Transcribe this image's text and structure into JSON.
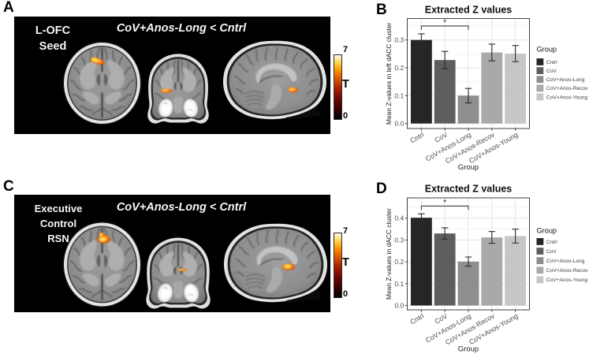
{
  "figure": {
    "panel_a": {
      "letter": "A",
      "seed_label": "L-OFC\nSeed",
      "contrast_title": "CoV+Anos-Long < Cntrl",
      "colorbar": {
        "top_label": "7",
        "mid_label": "T",
        "bottom_label": "0"
      }
    },
    "panel_c": {
      "letter": "C",
      "seed_label": "Executive\nControl\nRSN",
      "contrast_title": "CoV+Anos-Long < Cntrl",
      "colorbar": {
        "top_label": "7",
        "mid_label": "T",
        "bottom_label": "0"
      }
    },
    "panel_b": {
      "letter": "B"
    },
    "panel_d": {
      "letter": "D"
    }
  },
  "chart_data": [
    {
      "panel": "B",
      "type": "bar",
      "title": "Extracted Z values",
      "xlabel": "Group",
      "ylabel": "Mean Z-values in left dACC cluster",
      "categories": [
        "Cntrl",
        "CoV",
        "CoV+Anos-Long",
        "CoV+Anos-Recov",
        "CoV+Anos-Young"
      ],
      "values": [
        0.3,
        0.228,
        0.1,
        0.255,
        0.251
      ],
      "errors": [
        0.022,
        0.031,
        0.026,
        0.03,
        0.029
      ],
      "ylim": [
        -0.018,
        0.377
      ],
      "yticks": [
        0.0,
        0.1,
        0.2,
        0.3
      ],
      "ytick_labels": [
        "0.0",
        "0.1",
        "0.2",
        "0.3"
      ],
      "bar_colors": [
        "#262626",
        "#5e5e5e",
        "#8e8e8e",
        "#a9a9a9",
        "#c6c6c6"
      ],
      "legend_title": "Group",
      "legend_labels": [
        "Cntrl",
        "CoV",
        "CoV+Anos-Long",
        "CoV+Anos-Recov",
        "CoV+Anos-Young"
      ],
      "significance": {
        "from": 0,
        "to": 2,
        "label": "*"
      },
      "grid": true,
      "legend_position": "right"
    },
    {
      "panel": "D",
      "type": "bar",
      "title": "Extracted Z values",
      "xlabel": "Group",
      "ylabel": "Mean Z-values in dACC cluster",
      "categories": [
        "Cntrl",
        "CoV",
        "CoV+Anos-Long",
        "CoV+Anos-Recov",
        "CoV+Anos-Young"
      ],
      "values": [
        0.402,
        0.33,
        0.201,
        0.312,
        0.318
      ],
      "errors": [
        0.018,
        0.026,
        0.021,
        0.027,
        0.032
      ],
      "ylim": [
        -0.02,
        0.493
      ],
      "yticks": [
        0.0,
        0.1,
        0.2,
        0.3,
        0.4
      ],
      "ytick_labels": [
        "0.0",
        "0.1",
        "0.2",
        "0.3",
        "0.4"
      ],
      "bar_colors": [
        "#262626",
        "#5e5e5e",
        "#8e8e8e",
        "#a9a9a9",
        "#c6c6c6"
      ],
      "legend_title": "Group",
      "legend_labels": [
        "Cntrl",
        "CoV",
        "CoV+Anos-Long",
        "CoV+Anos-Recov",
        "CoV+Anos-Young"
      ],
      "significance": {
        "from": 0,
        "to": 2,
        "label": "*"
      },
      "grid": true,
      "legend_position": "right"
    }
  ]
}
